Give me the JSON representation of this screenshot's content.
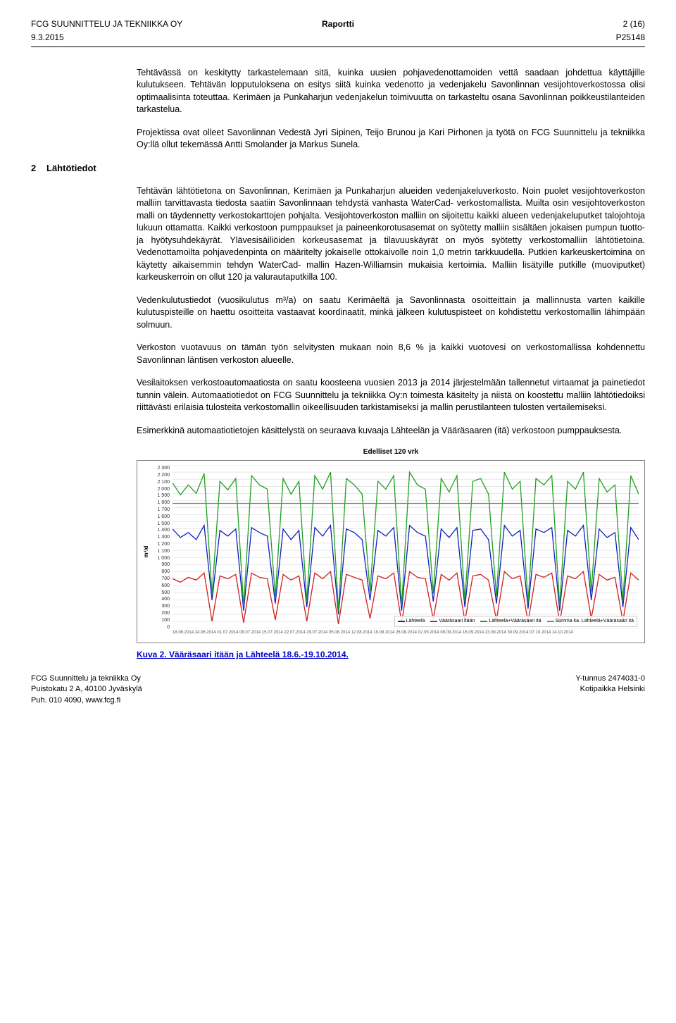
{
  "header": {
    "company": "FCG SUUNNITTELU JA TEKNIIKKA OY",
    "doc_label": "Raportti",
    "page_info": "2 (16)",
    "date": "9.3.2015",
    "project": "P25148"
  },
  "paragraphs": {
    "p1": "Tehtävässä on keskitytty tarkastelemaan sitä, kuinka uusien pohjavedenottamoiden vettä saadaan johdettua käyttäjille kulutukseen. Tehtävän lopputuloksena on esitys siitä kuinka vedenotto ja vedenjakelu Savonlinnan vesijohtoverkostossa olisi optimaalisinta toteuttaa. Kerimäen ja Punkaharjun vedenjakelun toimivuutta on tarkasteltu osana Savonlinnan poikkeustilanteiden tarkastelua.",
    "p2": "Projektissa ovat olleet Savonlinnan Vedestä Jyri Sipinen, Teijo Brunou ja Kari Pirhonen ja työtä on FCG Suunnittelu ja tekniikka Oy:llä ollut tekemässä Antti Smolander ja Markus Sunela.",
    "p3": "Tehtävän lähtötietona on Savonlinnan, Kerimäen ja Punkaharjun alueiden vedenjakeluverkosto. Noin puolet vesijohtoverkoston malliin tarvittavasta tiedosta saatiin Savonlinnaan tehdystä vanhasta WaterCad- verkostomallista. Muilta osin vesijohtoverkoston malli on täydennetty verkostokarttojen pohjalta. Vesijohtoverkoston malliin on sijoitettu kaikki alueen vedenjakeluputket talojohtoja lukuun ottamatta. Kaikki verkostoon pumppaukset ja paineenkorotusasemat on syötetty malliin sisältäen jokaisen pumpun tuotto- ja hyötysuhdekäyrät. Ylävesisäiliöiden korkeusasemat ja tilavuuskäyrät on myös syötetty verkostomalliin lähtötietoina. Vedenottamoilta pohjavedenpinta on määritelty jokaiselle ottokaivolle noin 1,0 metrin tarkkuudella. Putkien karkeuskertoimina on käytetty aikaisemmin tehdyn WaterCad- mallin Hazen-Williamsin mukaisia kertoimia. Malliin lisätyille putkille (muoviputket) karkeuskerroin on ollut 120 ja valurautaputkilla 100.",
    "p4": "Vedenkulutustiedot (vuosikulutus m³/a) on saatu Kerimäeltä ja Savonlinnasta osoitteittain ja mallinnusta varten kaikille kulutuspisteille on haettu osoitteita vastaavat koordinaatit, minkä jälkeen kulutuspisteet on kohdistettu verkostomallin lähimpään solmuun.",
    "p5": "Verkoston vuotavuus on tämän työn selvitysten mukaan noin 8,6 % ja kaikki vuotovesi on verkostomallissa kohdennettu Savonlinnan läntisen verkoston alueelle.",
    "p6": "Vesilaitoksen verkostoautomaatiosta on saatu koosteena vuosien 2013 ja 2014 järjestelmään tallennetut virtaamat ja painetiedot tunnin välein. Automaatiotiedot on FCG Suunnittelu ja tekniikka Oy:n toimesta käsitelty ja niistä on koostettu malliin lähtötiedoiksi riittävästi erilaisia tulosteita verkostomallin oikeellisuuden tarkistamiseksi ja mallin perustilanteen tulosten vertailemiseksi.",
    "p7": "Esimerkkinä automaatiotietojen käsittelystä on seuraava kuvaaja Lähteelän ja Vääräsaaren (itä) verkostoon pumppauksesta."
  },
  "section": {
    "num": "2",
    "title": "Lähtötiedot"
  },
  "chart": {
    "title": "Edelliset 120 vrk",
    "ylabel": "m³/d",
    "ymin": 0,
    "ymax": 2300,
    "ystep": 100,
    "background": "#ffffff",
    "grid_color": "#d0d0d0",
    "series": [
      {
        "name": "Lähteelä",
        "color": "#1020c0",
        "values": [
          1400,
          1280,
          1350,
          1250,
          1450,
          400,
          1380,
          1300,
          1400,
          250,
          1420,
          1350,
          1300,
          350,
          1400,
          1250,
          1380,
          300,
          1420,
          1300,
          1450,
          200,
          1400,
          1350,
          1250,
          400,
          1380,
          1300,
          1420,
          250,
          1450,
          1350,
          1300,
          380,
          1400,
          1280,
          1420,
          300,
          1380,
          1400,
          1250,
          350,
          1450,
          1300,
          1380,
          280,
          1400,
          1350,
          1420,
          250,
          1380,
          1300,
          1450,
          400,
          1400,
          1280,
          1350,
          300,
          1420,
          1250
        ]
      },
      {
        "name": "Vääräsaari itään",
        "color": "#d02020",
        "values": [
          700,
          650,
          720,
          680,
          780,
          100,
          740,
          700,
          760,
          80,
          780,
          720,
          700,
          120,
          760,
          680,
          740,
          100,
          780,
          700,
          800,
          60,
          760,
          720,
          680,
          140,
          740,
          700,
          780,
          80,
          800,
          720,
          700,
          130,
          760,
          680,
          780,
          100,
          740,
          760,
          680,
          120,
          800,
          700,
          740,
          90,
          760,
          720,
          780,
          80,
          740,
          700,
          800,
          140,
          760,
          680,
          720,
          100,
          780,
          680
        ]
      },
      {
        "name": "Lähteelä+Vääräsaari itä",
        "color": "#20a020",
        "values": [
          2050,
          1880,
          2020,
          1900,
          2180,
          480,
          2070,
          1950,
          2110,
          315,
          2150,
          2020,
          1960,
          450,
          2110,
          1890,
          2070,
          385,
          2150,
          1960,
          2200,
          250,
          2110,
          2020,
          1890,
          520,
          2070,
          1960,
          2150,
          315,
          2200,
          2020,
          1960,
          490,
          2110,
          1920,
          2150,
          385,
          2070,
          2110,
          1890,
          450,
          2200,
          1960,
          2070,
          360,
          2110,
          2020,
          2150,
          315,
          2070,
          1960,
          2200,
          520,
          2110,
          1920,
          2020,
          385,
          2150,
          1890
        ]
      },
      {
        "name": "Summa ka. Lähteelä+Vääräsaari itä",
        "color": "#808080",
        "values": [
          1760,
          1760,
          1760,
          1760,
          1760,
          1760,
          1760,
          1760,
          1760,
          1760,
          1760,
          1760,
          1760,
          1760,
          1760,
          1760,
          1760,
          1760,
          1760,
          1760,
          1760,
          1760,
          1760,
          1760,
          1760,
          1760,
          1760,
          1760,
          1760,
          1760,
          1760,
          1760,
          1760,
          1760,
          1760,
          1760,
          1760,
          1760,
          1760,
          1760,
          1760,
          1760,
          1760,
          1760,
          1760,
          1760,
          1760,
          1760,
          1760,
          1760,
          1760,
          1760,
          1760,
          1760,
          1760,
          1760,
          1760,
          1760,
          1760,
          1760
        ]
      }
    ],
    "xlabels_sample": "18.06.2014   24.06.2014   01.07.2014   08.07.2014   15.07.2014   22.07.2014   29.07.2014   05.08.2014   12.08.2014   19.08.2014   26.08.2014   02.09.2014   09.09.2014   16.09.2014   23.09.2014   30.09.2014   07.10.2014   14.10.2014"
  },
  "caption": "Kuva 2. Vääräsaari itään ja Lähteelä 18.6.-19.10.2014.",
  "footer": {
    "l1": "FCG Suunnittelu ja tekniikka Oy",
    "l2": "Puistokatu 2 A, 40100 Jyväskylä",
    "l3": "Puh. 010 4090, www.fcg.fi",
    "r1": "Y-tunnus 2474031-0",
    "r2": "Kotipaikka Helsinki"
  }
}
